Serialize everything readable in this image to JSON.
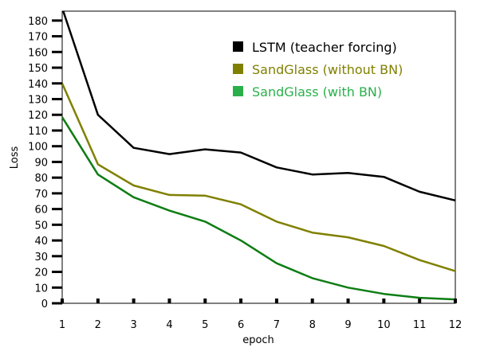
{
  "chart_data": {
    "type": "line",
    "xlabel": "epoch",
    "ylabel": "Loss",
    "x": [
      1,
      2,
      3,
      4,
      5,
      6,
      7,
      8,
      9,
      10,
      11,
      12
    ],
    "xlim": [
      1,
      12
    ],
    "ylim": [
      0,
      186
    ],
    "yticks": [
      0,
      10,
      20,
      30,
      40,
      50,
      60,
      70,
      80,
      90,
      100,
      110,
      120,
      130,
      140,
      150,
      160,
      170,
      180
    ],
    "grid": false,
    "legend_position": "top-right",
    "series": [
      {
        "name": "LSTM (teacher forcing)",
        "color": "#000000",
        "values": [
          188,
          120,
          99,
          95,
          98,
          96,
          86.5,
          82,
          83,
          80.5,
          71,
          65.5
        ]
      },
      {
        "name": "SandGlass (without BN)",
        "color": "#808000",
        "values": [
          140,
          88.5,
          75,
          69,
          68.5,
          63,
          52,
          45,
          42,
          36.5,
          27.5,
          20.5
        ]
      },
      {
        "name": "SandGlass (with BN)",
        "color": "#2ab04a",
        "line_color": "#0e7d14",
        "values": [
          118.5,
          82,
          67.5,
          59,
          52,
          40,
          25.5,
          16,
          10,
          6,
          3.5,
          2.5
        ]
      }
    ]
  }
}
